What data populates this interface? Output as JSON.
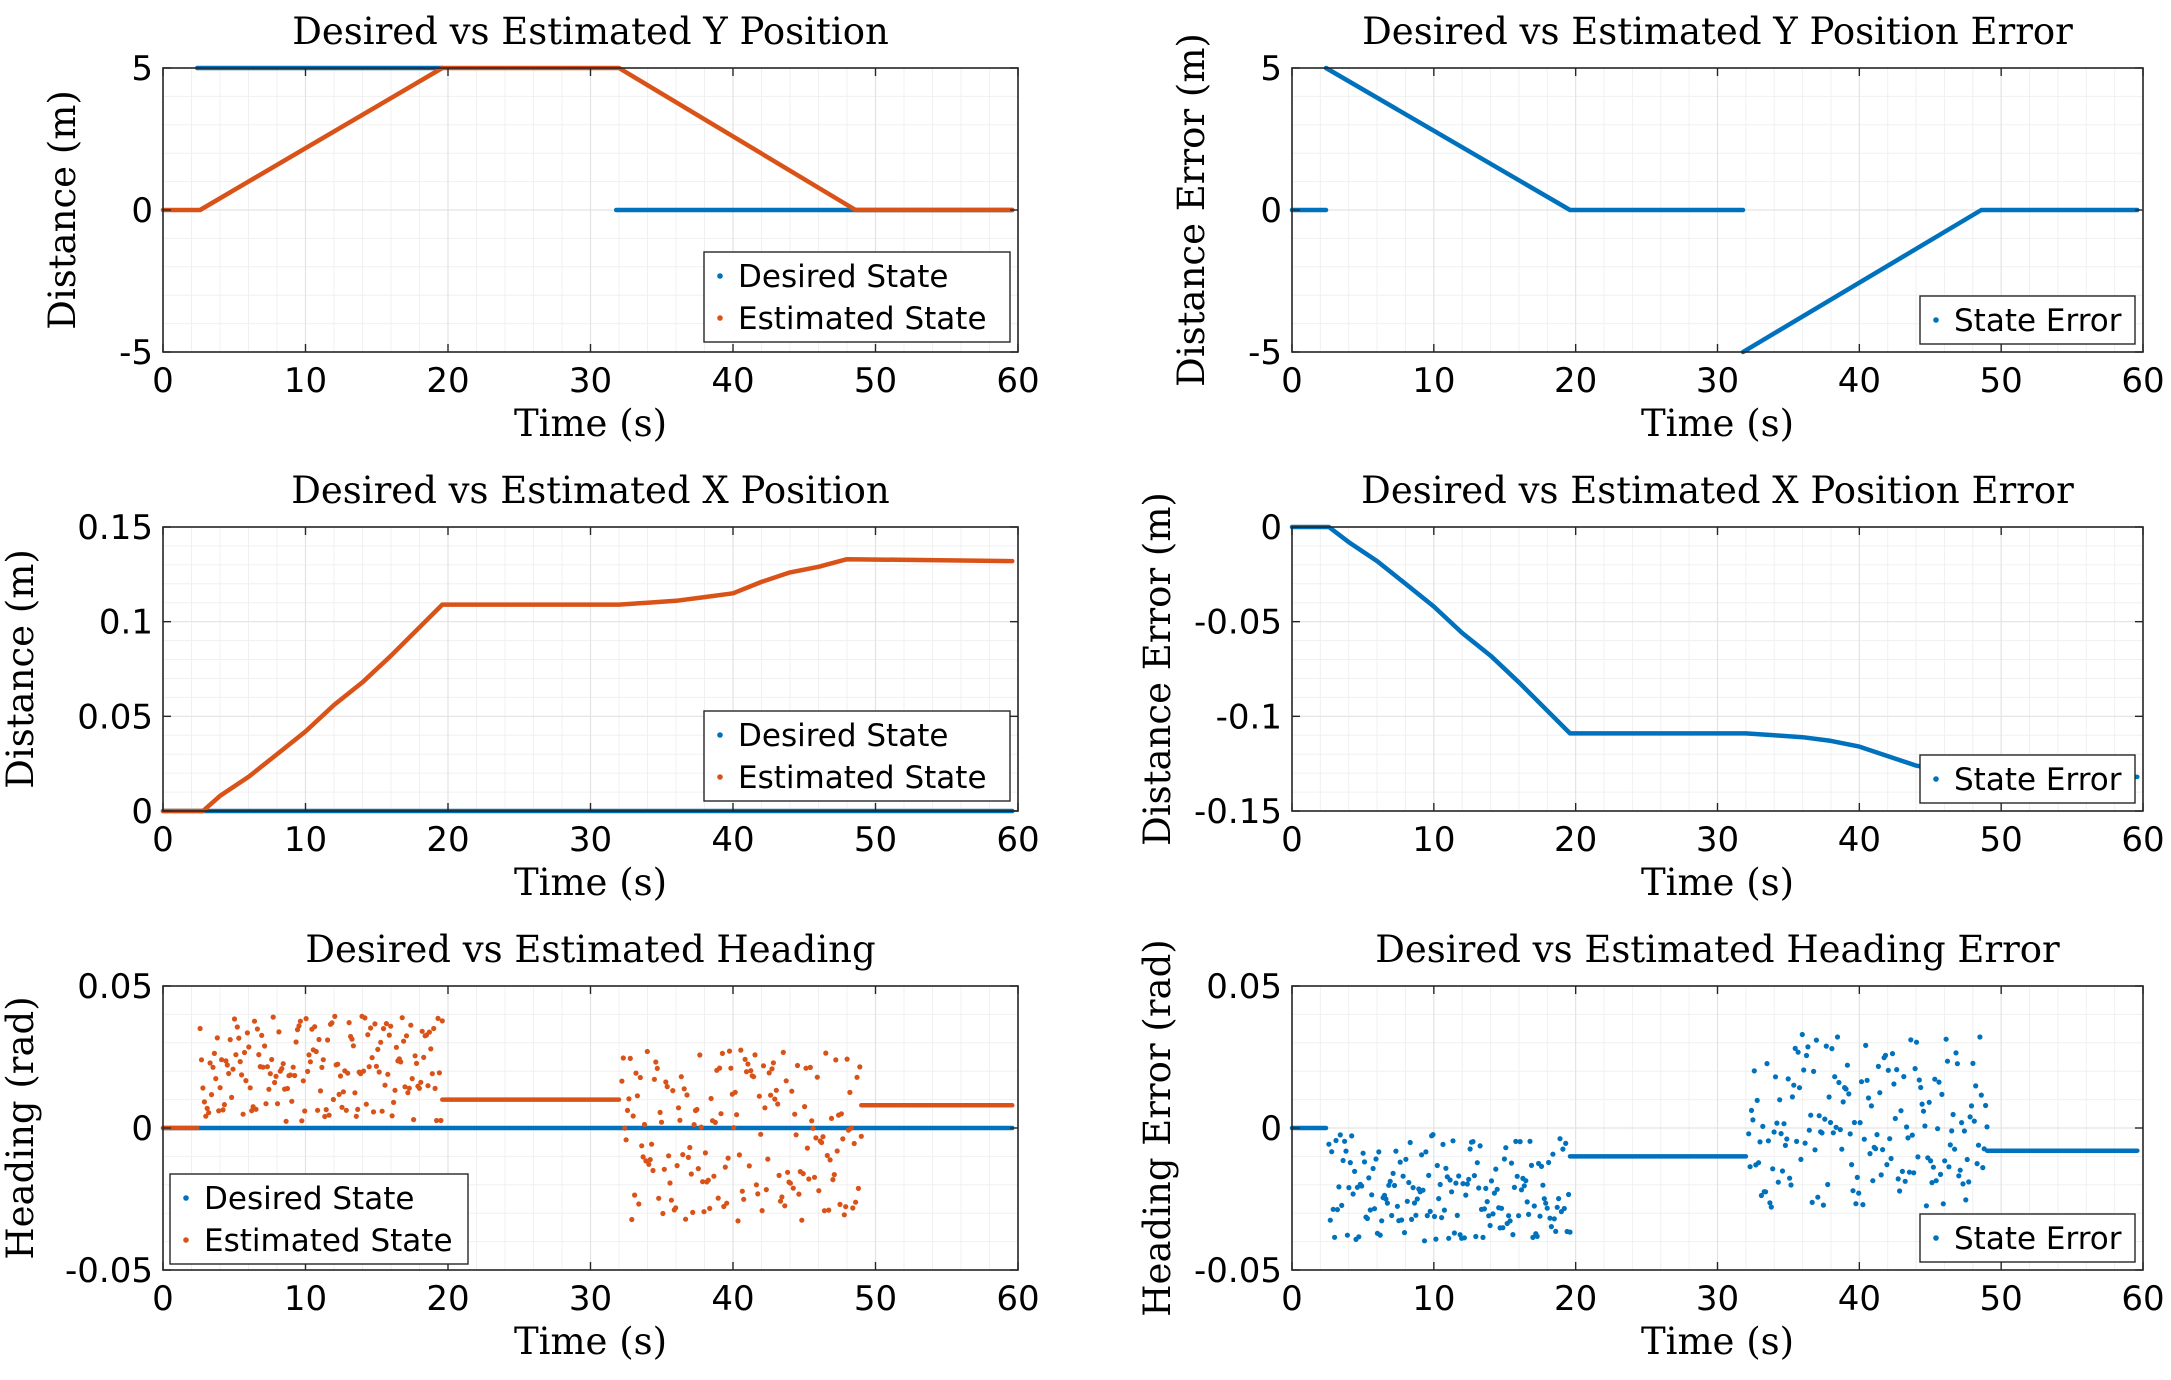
{
  "colors": {
    "desired": "#0072BD",
    "estimated": "#D95319",
    "grid": "#e3e3e3",
    "axis": "#262626"
  },
  "chart_data": [
    {
      "id": "y-pos",
      "type": "line",
      "title": "Desired vs Estimated Y Position",
      "xlabel": "Time (s)",
      "ylabel": "Distance (m)",
      "xlim": [
        0,
        60
      ],
      "ylim": [
        -5,
        5
      ],
      "xticks": [
        0,
        10,
        20,
        30,
        40,
        50,
        60
      ],
      "yticks": [
        -5,
        0,
        5
      ],
      "yticklabels": [
        "-5",
        "0",
        "5"
      ],
      "grid": true,
      "legend_position": "bottom-right",
      "series": [
        {
          "name": "Desired State",
          "color": "#0072BD",
          "segments": [
            [
              [
                2.4,
                5
              ],
              [
                19.6,
                5
              ]
            ],
            [
              [
                31.8,
                0
              ],
              [
                59.6,
                0
              ]
            ]
          ]
        },
        {
          "name": "Estimated State",
          "color": "#D95319",
          "segments": [
            [
              [
                0,
                0
              ],
              [
                2.6,
                0
              ],
              [
                6,
                1
              ],
              [
                19.6,
                5
              ],
              [
                32,
                5
              ],
              [
                48.6,
                0
              ],
              [
                59.6,
                0
              ]
            ]
          ]
        }
      ]
    },
    {
      "id": "y-err",
      "type": "line",
      "title": "Desired vs Estimated Y Position Error",
      "xlabel": "Time (s)",
      "ylabel": "Distance Error (m)",
      "xlim": [
        0,
        60
      ],
      "ylim": [
        -5,
        5
      ],
      "xticks": [
        0,
        10,
        20,
        30,
        40,
        50,
        60
      ],
      "yticks": [
        -5,
        0,
        5
      ],
      "yticklabels": [
        "-5",
        "0",
        "5"
      ],
      "grid": true,
      "legend_position": "bottom-right",
      "series": [
        {
          "name": "State Error",
          "color": "#0072BD",
          "segments": [
            [
              [
                0,
                0
              ],
              [
                2.4,
                0
              ]
            ],
            [
              [
                2.4,
                5
              ],
              [
                19.6,
                0
              ],
              [
                31.8,
                0
              ]
            ],
            [
              [
                31.8,
                -5
              ],
              [
                48.6,
                0
              ],
              [
                59.6,
                0
              ]
            ]
          ]
        }
      ]
    },
    {
      "id": "x-pos",
      "type": "line",
      "title": "Desired vs Estimated X Position",
      "xlabel": "Time (s)",
      "ylabel": "Distance (m)",
      "xlim": [
        0,
        60
      ],
      "ylim": [
        0,
        0.15
      ],
      "xticks": [
        0,
        10,
        20,
        30,
        40,
        50,
        60
      ],
      "yticks": [
        0,
        0.05,
        0.1,
        0.15
      ],
      "yticklabels": [
        "0",
        "0.05",
        "0.1",
        "0.15"
      ],
      "grid": true,
      "legend_position": "bottom-right",
      "series": [
        {
          "name": "Desired State",
          "color": "#0072BD",
          "segments": [
            [
              [
                0,
                0
              ],
              [
                59.6,
                0
              ]
            ]
          ]
        },
        {
          "name": "Estimated State",
          "color": "#D95319",
          "segments": [
            [
              [
                0,
                0
              ],
              [
                2.8,
                0
              ],
              [
                4,
                0.008
              ],
              [
                6,
                0.018
              ],
              [
                8,
                0.03
              ],
              [
                10,
                0.042
              ],
              [
                12,
                0.056
              ],
              [
                14,
                0.068
              ],
              [
                16,
                0.082
              ],
              [
                18,
                0.097
              ],
              [
                19.6,
                0.109
              ],
              [
                32,
                0.109
              ],
              [
                34,
                0.11
              ],
              [
                36,
                0.111
              ],
              [
                38,
                0.113
              ],
              [
                40,
                0.115
              ],
              [
                42,
                0.121
              ],
              [
                44,
                0.126
              ],
              [
                46,
                0.129
              ],
              [
                48,
                0.133
              ],
              [
                59.6,
                0.132
              ]
            ]
          ]
        }
      ]
    },
    {
      "id": "x-err",
      "type": "line",
      "title": "Desired vs Estimated X Position Error",
      "xlabel": "Time (s)",
      "ylabel": "Distance Error (m)",
      "xlim": [
        0,
        60
      ],
      "ylim": [
        -0.15,
        0
      ],
      "xticks": [
        0,
        10,
        20,
        30,
        40,
        50,
        60
      ],
      "yticks": [
        -0.15,
        -0.1,
        -0.05,
        0
      ],
      "yticklabels": [
        "-0.15",
        "-0.1",
        "-0.05",
        "0"
      ],
      "grid": true,
      "legend_position": "bottom-right",
      "series": [
        {
          "name": "State Error",
          "color": "#0072BD",
          "segments": [
            [
              [
                0,
                0
              ],
              [
                2.6,
                0
              ],
              [
                4,
                -0.008
              ],
              [
                6,
                -0.018
              ],
              [
                8,
                -0.03
              ],
              [
                10,
                -0.042
              ],
              [
                12,
                -0.056
              ],
              [
                14,
                -0.068
              ],
              [
                16,
                -0.082
              ],
              [
                18,
                -0.097
              ],
              [
                19.6,
                -0.109
              ],
              [
                32,
                -0.109
              ],
              [
                34,
                -0.11
              ],
              [
                36,
                -0.111
              ],
              [
                38,
                -0.113
              ],
              [
                40,
                -0.116
              ],
              [
                42,
                -0.121
              ],
              [
                44,
                -0.126
              ],
              [
                46,
                -0.129
              ],
              [
                48,
                -0.132
              ],
              [
                59.6,
                -0.132
              ]
            ]
          ]
        }
      ]
    },
    {
      "id": "heading",
      "type": "scatter",
      "title": "Desired vs Estimated Heading",
      "xlabel": "Time (s)",
      "ylabel": "Heading (rad)",
      "xlim": [
        0,
        60
      ],
      "ylim": [
        -0.05,
        0.05
      ],
      "xticks": [
        0,
        10,
        20,
        30,
        40,
        50,
        60
      ],
      "yticks": [
        -0.05,
        0,
        0.05
      ],
      "yticklabels": [
        "-0.05",
        "0",
        "0.05"
      ],
      "grid": true,
      "legend_position": "bottom-left",
      "series": [
        {
          "name": "Desired State",
          "color": "#0072BD",
          "segments": [
            [
              [
                0,
                0
              ],
              [
                59.6,
                0
              ]
            ]
          ]
        },
        {
          "name": "Estimated State",
          "color": "#D95319",
          "segments": [
            [
              [
                0,
                0
              ],
              [
                2.4,
                0
              ]
            ],
            [
              [
                19.6,
                0.01
              ],
              [
                32,
                0.01
              ]
            ],
            [
              [
                49,
                0.008
              ],
              [
                59.6,
                0.008
              ]
            ]
          ],
          "scatter_ranges": [
            {
              "x": [
                2.6,
                19.6
              ],
              "y": [
                0.002,
                0.04
              ],
              "n": 170
            },
            {
              "x": [
                32.2,
                49
              ],
              "y": [
                -0.033,
                0.028
              ],
              "n": 170
            }
          ]
        }
      ]
    },
    {
      "id": "heading-err",
      "type": "scatter",
      "title": "Desired vs Estimated Heading Error",
      "xlabel": "Time (s)",
      "ylabel": "Heading Error (rad)",
      "xlim": [
        0,
        60
      ],
      "ylim": [
        -0.05,
        0.05
      ],
      "xticks": [
        0,
        10,
        20,
        30,
        40,
        50,
        60
      ],
      "yticks": [
        -0.05,
        0,
        0.05
      ],
      "yticklabels": [
        "-0.05",
        "0",
        "0.05"
      ],
      "grid": true,
      "legend_position": "bottom-right",
      "series": [
        {
          "name": "State Error",
          "color": "#0072BD",
          "segments": [
            [
              [
                0,
                0
              ],
              [
                2.4,
                0
              ]
            ],
            [
              [
                19.6,
                -0.01
              ],
              [
                32,
                -0.01
              ]
            ],
            [
              [
                49,
                -0.008
              ],
              [
                59.6,
                -0.008
              ]
            ]
          ],
          "scatter_ranges": [
            {
              "x": [
                2.6,
                19.6
              ],
              "y": [
                -0.04,
                -0.002
              ],
              "n": 170
            },
            {
              "x": [
                32.2,
                49
              ],
              "y": [
                -0.028,
                0.033
              ],
              "n": 170
            }
          ]
        }
      ]
    }
  ]
}
